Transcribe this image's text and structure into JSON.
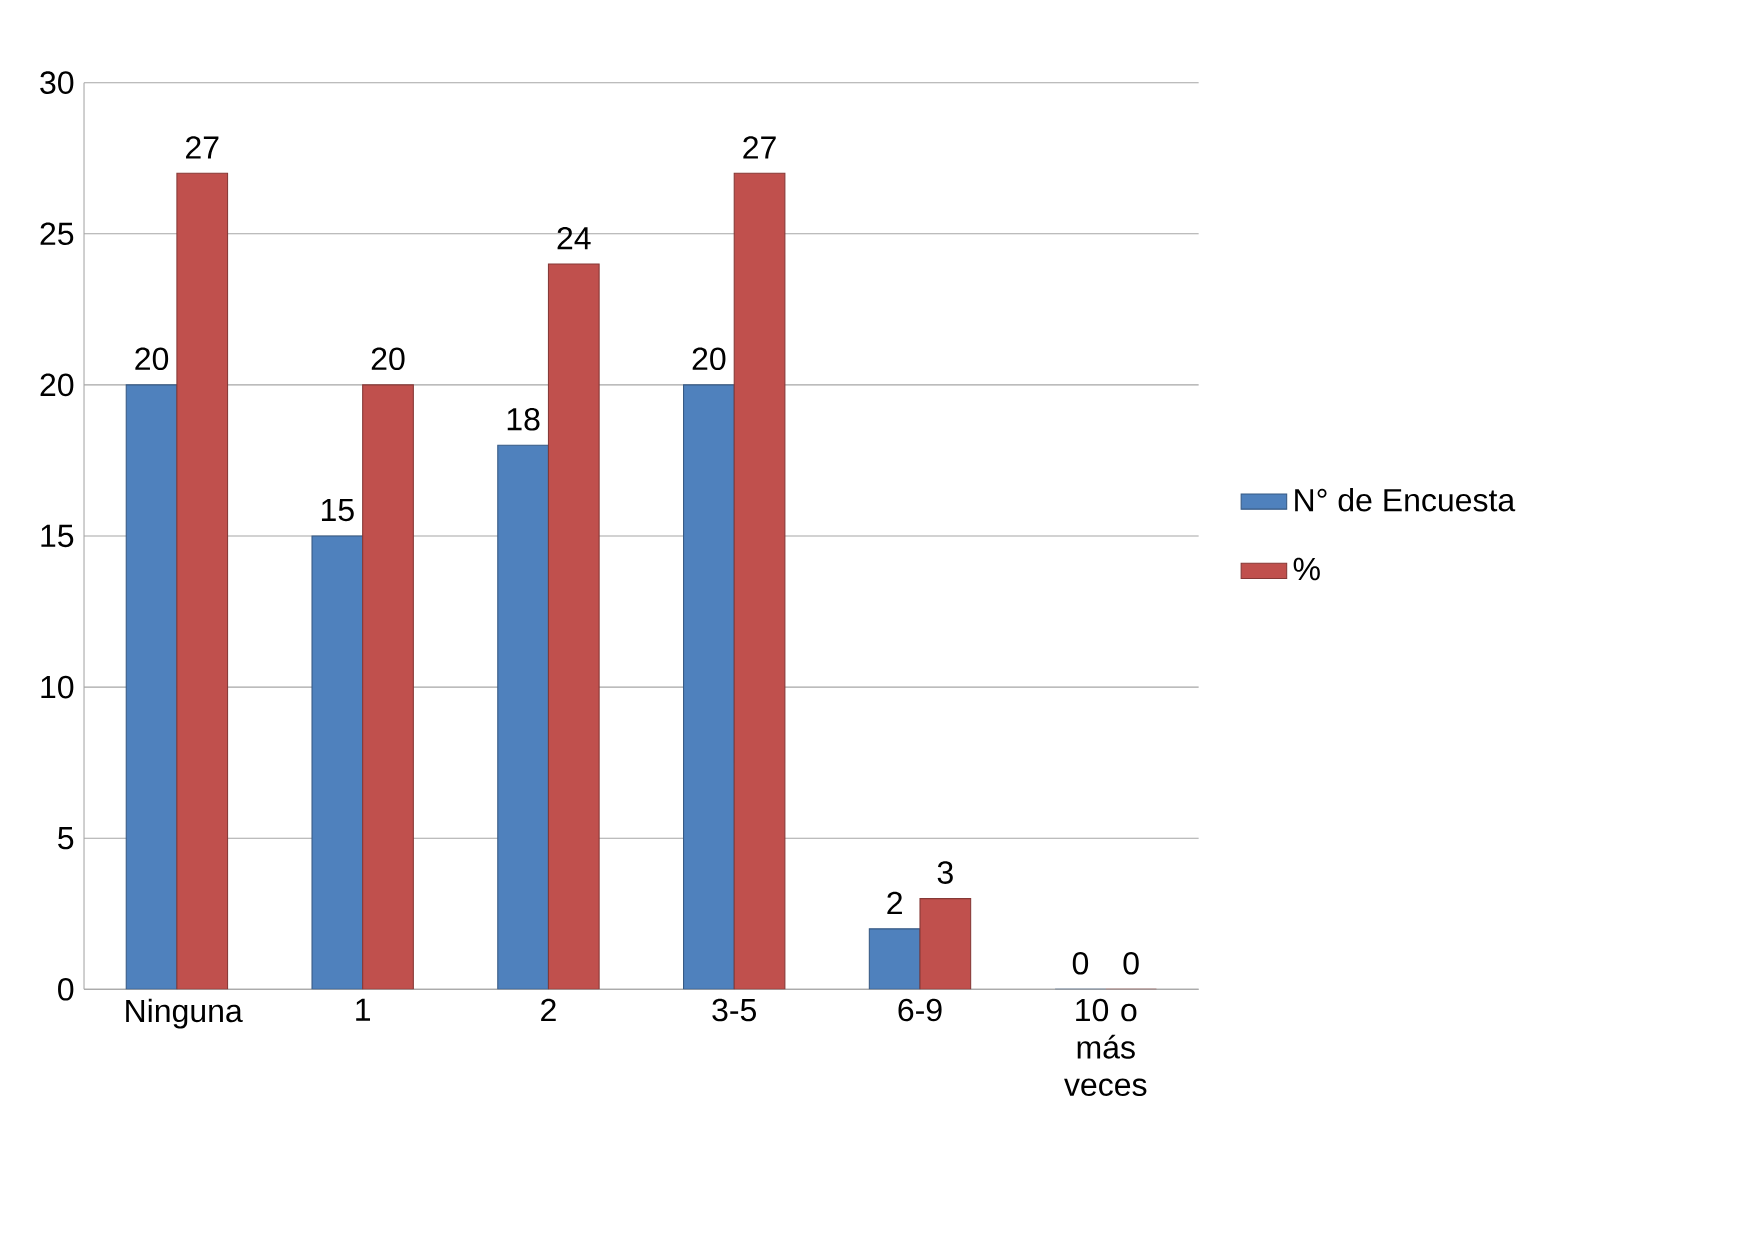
{
  "chart_data": {
    "type": "bar",
    "categories": [
      "Ninguna",
      "1",
      "2",
      "3-5",
      "6-9",
      "10 o más veces"
    ],
    "series": [
      {
        "name": "N° de Encuesta",
        "color": "#4f81bd",
        "values": [
          20,
          15,
          18,
          20,
          2,
          0
        ]
      },
      {
        "name": "%",
        "color": "#c0504d",
        "values": [
          27,
          20,
          24,
          27,
          3,
          0
        ]
      }
    ],
    "ylim": [
      0,
      30
    ],
    "yticks": [
      0,
      5,
      10,
      15,
      20,
      25,
      30
    ],
    "grid": "y",
    "legend": "right",
    "data_labels": true
  }
}
